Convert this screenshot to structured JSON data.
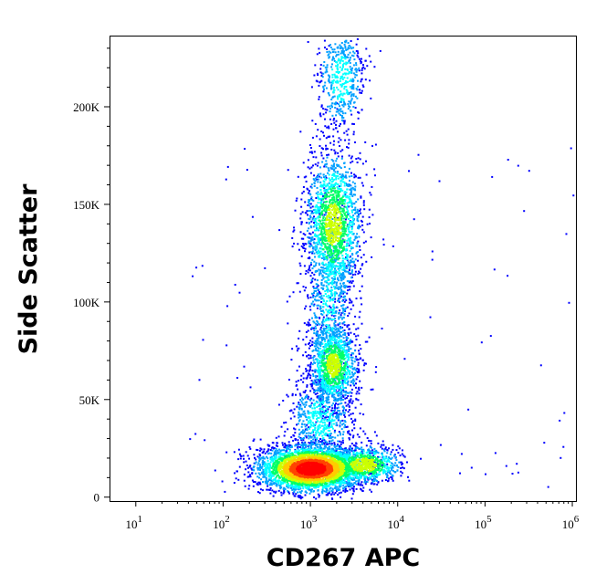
{
  "chart_data": {
    "type": "scatter",
    "subtype": "flow-cytometry-density-dot-plot",
    "xlabel": "CD267 APC",
    "ylabel": "Side Scatter",
    "x_scale": "log",
    "y_scale": "linear",
    "xlim": [
      5,
      1100000
    ],
    "ylim": [
      -2000,
      236000
    ],
    "x_ticks": [
      {
        "value": 10,
        "base": "10",
        "exp": "1"
      },
      {
        "value": 100,
        "base": "10",
        "exp": "2"
      },
      {
        "value": 1000,
        "base": "10",
        "exp": "3"
      },
      {
        "value": 10000,
        "base": "10",
        "exp": "4"
      },
      {
        "value": 100000,
        "base": "10",
        "exp": "5"
      },
      {
        "value": 1000000,
        "base": "10",
        "exp": "6"
      }
    ],
    "y_ticks": [
      {
        "value": 0,
        "label": "0"
      },
      {
        "value": 50000,
        "label": "50K"
      },
      {
        "value": 100000,
        "label": "100K"
      },
      {
        "value": 150000,
        "label": "150K"
      },
      {
        "value": 200000,
        "label": "200K"
      }
    ],
    "populations": [
      {
        "center_x": 1000,
        "center_y": 15000,
        "peak_density": "high"
      },
      {
        "center_x": 4000,
        "center_y": 17000,
        "peak_density": "medium"
      },
      {
        "center_x": 1800,
        "center_y": 68000,
        "peak_density": "medium"
      },
      {
        "center_x": 1800,
        "center_y": 140000,
        "peak_density": "medium"
      },
      {
        "center_x": 2200,
        "center_y": 215000,
        "peak_density": "low"
      }
    ],
    "colormap": [
      "#0000ff",
      "#00a0ff",
      "#00ffff",
      "#00ff66",
      "#ccff00",
      "#ffcc00",
      "#ff4400",
      "#ff0000"
    ],
    "grid": false,
    "legend": "none"
  }
}
